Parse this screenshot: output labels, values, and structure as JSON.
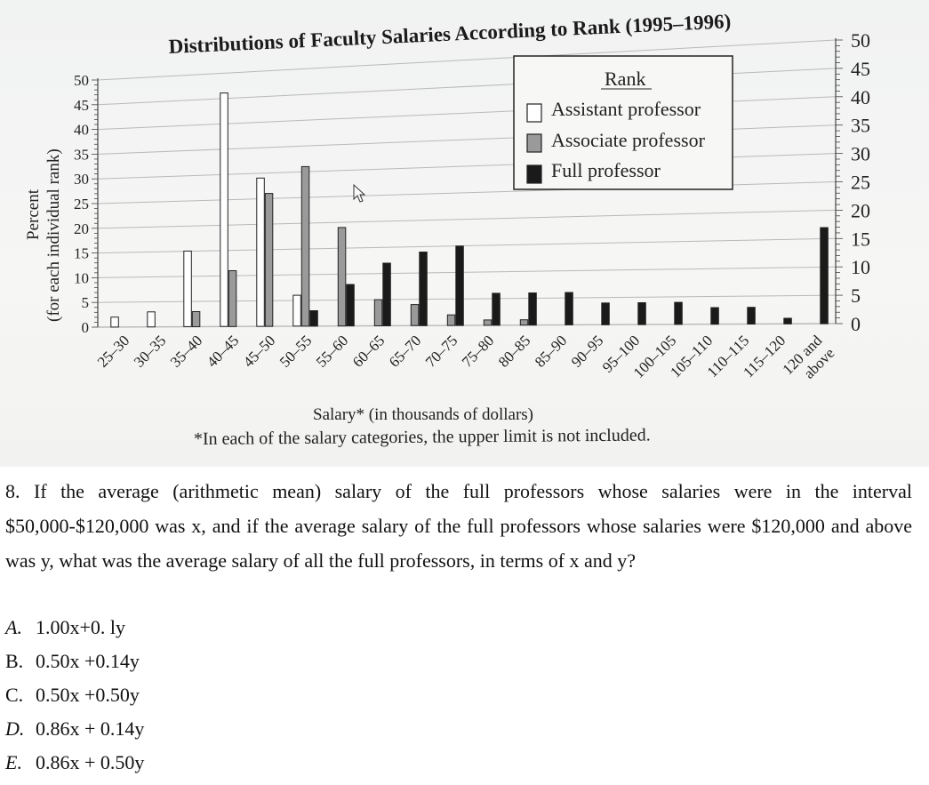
{
  "question": {
    "text": "8. If the average (arithmetic mean) salary of the full professors whose salaries were in the interval $50,000-$120,000 was x, and if the average salary of the full professors whose salaries were $120,000 and above was y, what was the average salary of all the full professors, in terms of x and y?",
    "options": [
      {
        "letter": "A.",
        "text": "1.00x+0. ly"
      },
      {
        "letter": "B.",
        "text": "0.50x +0.14y"
      },
      {
        "letter": "C.",
        "text": "0.50x +0.50y"
      },
      {
        "letter": "D.",
        "text": "0.86x + 0.14y"
      },
      {
        "letter": "E.",
        "text": "0.86x + 0.50y"
      }
    ]
  },
  "colors": {
    "assistant": "#ffffff",
    "associate": "#9a9a9a",
    "full": "#1a1a1a",
    "grid": "#b9b9b9",
    "photo_bg": "#f3f3f2"
  },
  "icons": [
    "mouse-cursor-icon"
  ],
  "chart_data": {
    "type": "bar",
    "title": "Distributions of Faculty Salaries According to Rank (1995–1996)",
    "xlabel": "Salary* (in thousands of dollars)",
    "ylabel": "Percent",
    "ylabel_sub": "(for each individual rank)",
    "note": "*In each of the salary categories, the upper limit is not included.",
    "legend_title": "Rank",
    "legend_position": "top-right",
    "ylim": [
      0,
      50
    ],
    "yticks": [
      0,
      5,
      10,
      15,
      20,
      25,
      30,
      35,
      40,
      45,
      50
    ],
    "grid": true,
    "categories": [
      "25–30",
      "30–35",
      "35–40",
      "40–45",
      "45–50",
      "50–55",
      "55–60",
      "60–65",
      "65–70",
      "70–75",
      "75–80",
      "80–85",
      "85–90",
      "90–95",
      "95–100",
      "100–105",
      "105–110",
      "110–115",
      "115–120",
      "120 and above"
    ],
    "series": [
      {
        "name": "Assistant professor",
        "values": [
          2,
          3,
          15,
          46,
          29,
          6,
          0,
          0,
          0,
          0,
          0,
          0,
          0,
          0,
          0,
          0,
          0,
          0,
          0,
          0
        ]
      },
      {
        "name": "Associate professor",
        "values": [
          0,
          0,
          3,
          11,
          26,
          31,
          19,
          5,
          4,
          2,
          1,
          1,
          0,
          0,
          0,
          0,
          0,
          0,
          0,
          0
        ]
      },
      {
        "name": "Full professor",
        "values": [
          0,
          0,
          0,
          0,
          0,
          3,
          8,
          12,
          14,
          15,
          6,
          6,
          6,
          4,
          4,
          4,
          3,
          3,
          1,
          17
        ]
      }
    ]
  }
}
